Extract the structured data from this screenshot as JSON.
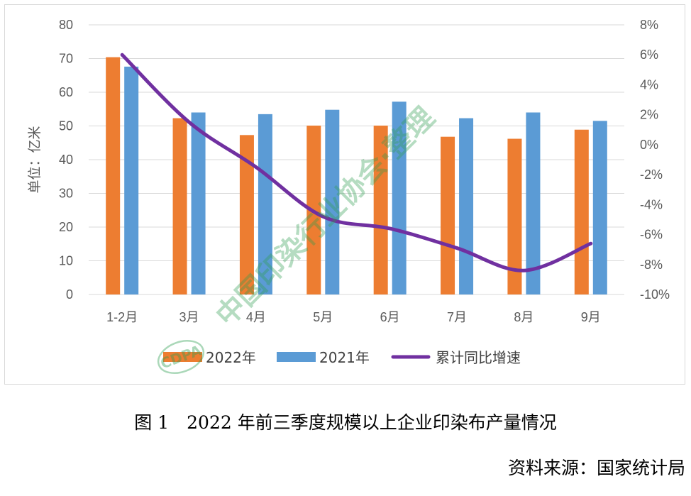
{
  "chart_data": {
    "type": "bar",
    "categories": [
      "1-2月",
      "3月",
      "4月",
      "5月",
      "6月",
      "7月",
      "8月",
      "9月"
    ],
    "series": [
      {
        "name": "2022年",
        "type": "bar",
        "axis": "left",
        "color": "#ED7D31",
        "values": [
          70.4,
          52.3,
          47.3,
          50.1,
          50.1,
          46.8,
          46.2,
          48.9
        ]
      },
      {
        "name": "2021年",
        "type": "bar",
        "axis": "left",
        "color": "#5B9BD5",
        "values": [
          67.6,
          54.0,
          53.5,
          54.8,
          57.2,
          52.3,
          54.0,
          51.5
        ]
      },
      {
        "name": "累计同比增速",
        "type": "line",
        "axis": "right",
        "color": "#7030A0",
        "values": [
          6.0,
          1.5,
          -1.5,
          -4.8,
          -5.6,
          -6.9,
          -8.4,
          -6.6
        ]
      }
    ],
    "ylabel": "单位：亿米",
    "ylim": [
      0,
      80
    ],
    "yticks": [
      "80",
      "70",
      "60",
      "50",
      "40",
      "30",
      "20",
      "10",
      "0"
    ],
    "y2lim": [
      -10,
      8
    ],
    "y2ticks": [
      "8%",
      "6%",
      "4%",
      "2%",
      "0%",
      "-2%",
      "-4%",
      "-6%",
      "-8%",
      "-10%"
    ],
    "legend_position": "bottom",
    "grid": true
  },
  "watermark": {
    "text": "中国印染行业协会·整理",
    "logo_text": "CDPA"
  },
  "caption": "图 1　2022 年前三季度规模以上企业印染布产量情况",
  "source": "资料来源：国家统计局"
}
